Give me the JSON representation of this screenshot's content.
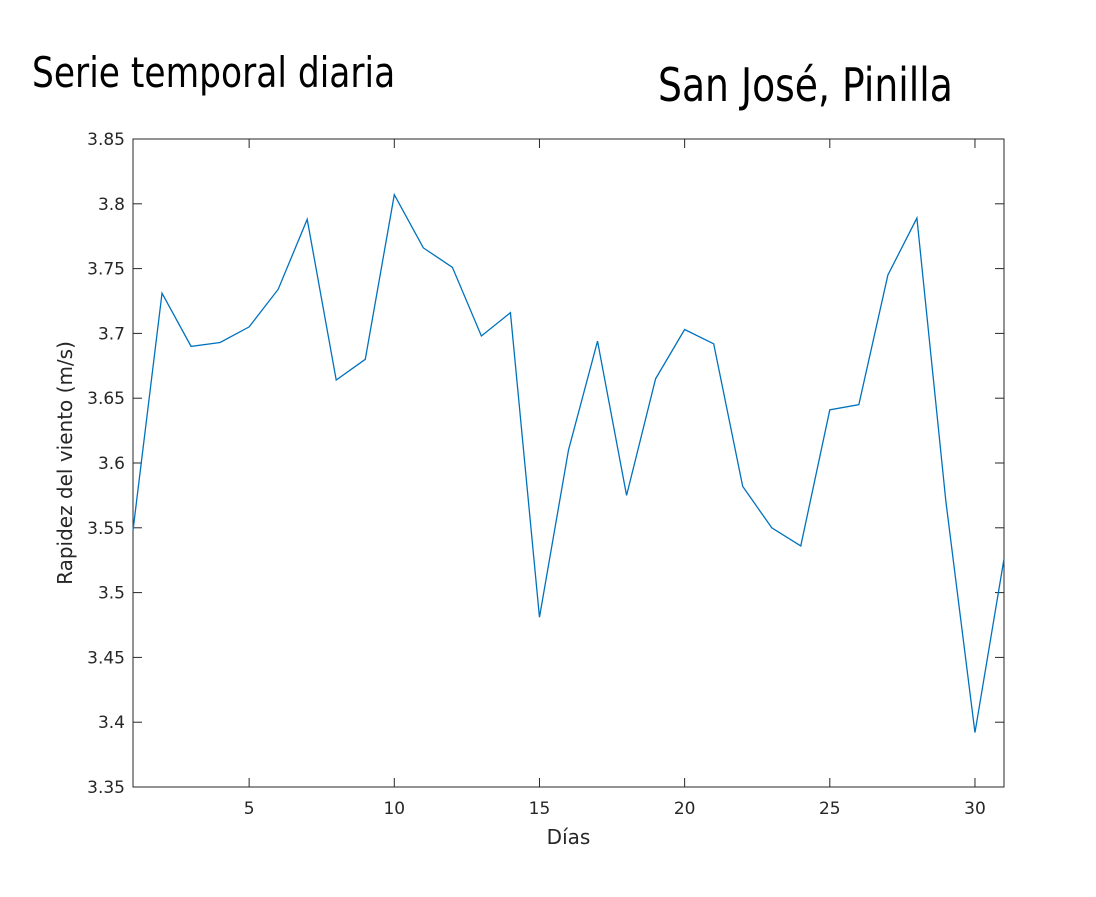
{
  "titles": {
    "left": "Serie temporal diaria",
    "right": "San José, Pinilla"
  },
  "chart_data": {
    "type": "line",
    "xlabel": "Días",
    "ylabel": "Rapidez del viento (m/s)",
    "xlim": [
      1,
      31
    ],
    "ylim": [
      3.35,
      3.85
    ],
    "xticks": [
      5,
      10,
      15,
      20,
      25,
      30
    ],
    "xtick_labels": [
      "5",
      "10",
      "15",
      "20",
      "25",
      "30"
    ],
    "yticks": [
      3.35,
      3.4,
      3.45,
      3.5,
      3.55,
      3.6,
      3.65,
      3.7,
      3.75,
      3.8,
      3.85
    ],
    "ytick_labels": [
      "3.35",
      "3.4",
      "3.45",
      "3.5",
      "3.55",
      "3.6",
      "3.65",
      "3.7",
      "3.75",
      "3.8",
      "3.85"
    ],
    "grid": false,
    "line_color": "#0072bd",
    "x": [
      1,
      2,
      3,
      4,
      5,
      6,
      7,
      8,
      9,
      10,
      11,
      12,
      13,
      14,
      15,
      16,
      17,
      18,
      19,
      20,
      21,
      22,
      23,
      24,
      25,
      26,
      27,
      28,
      29,
      30,
      31
    ],
    "y": [
      3.548,
      3.731,
      3.69,
      3.693,
      3.705,
      3.734,
      3.788,
      3.664,
      3.68,
      3.807,
      3.766,
      3.751,
      3.698,
      3.716,
      3.481,
      3.61,
      3.694,
      3.575,
      3.665,
      3.703,
      3.692,
      3.582,
      3.55,
      3.536,
      3.641,
      3.645,
      3.745,
      3.789,
      3.57,
      3.392,
      3.526
    ]
  }
}
